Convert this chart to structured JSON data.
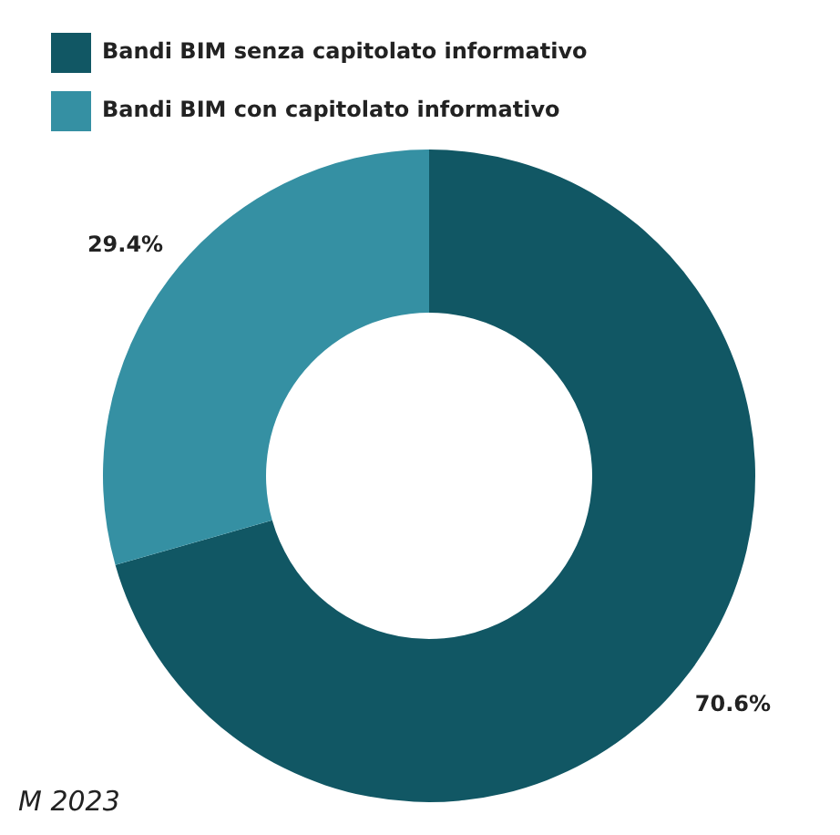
{
  "chart_data": {
    "type": "donut",
    "categories": [
      "Bandi BIM senza capitolato informativo",
      "Bandi BIM con capitolato informativo"
    ],
    "values": [
      70.6,
      29.4
    ],
    "colors": [
      "#115764",
      "#3590a3"
    ],
    "value_labels": [
      "70.6%",
      "29.4%"
    ],
    "legend": "top left",
    "annotations": [
      "M 2023"
    ]
  }
}
